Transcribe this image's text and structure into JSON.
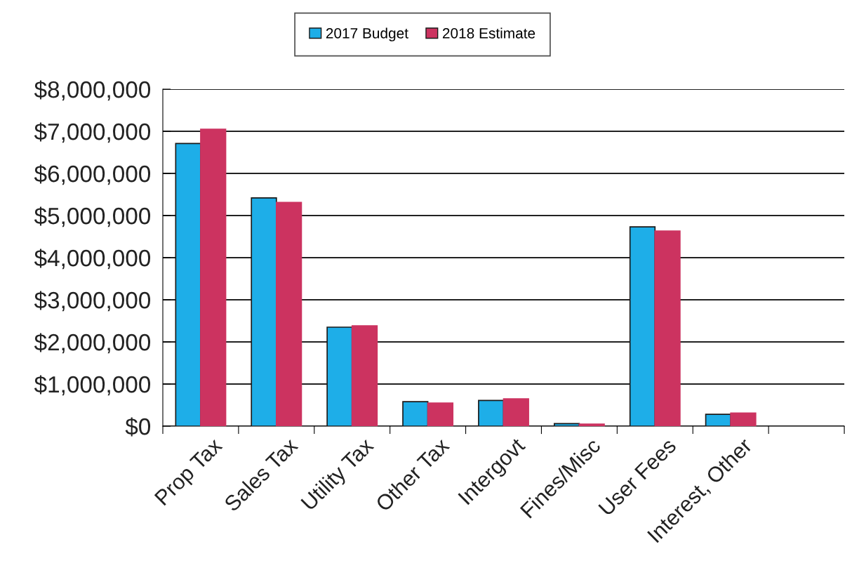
{
  "chart_data": {
    "type": "bar",
    "categories": [
      "Prop Tax",
      "Sales Tax",
      "Utility Tax",
      "Other Tax",
      "Intergovt",
      "Fines/Misc",
      "User Fees",
      "Interest, Other",
      null
    ],
    "series": [
      {
        "name": "2017 Budget",
        "color": "#1eaee8",
        "values": [
          6710000,
          5420000,
          2350000,
          580000,
          610000,
          60000,
          4730000,
          280000,
          null
        ]
      },
      {
        "name": "2018 Estimate",
        "color": "#cc3360",
        "values": [
          7050000,
          5310000,
          2380000,
          550000,
          650000,
          50000,
          4630000,
          310000,
          null
        ]
      }
    ],
    "ylim": [
      0,
      8000000
    ],
    "yticks": [
      {
        "value": 0,
        "label": "$0"
      },
      {
        "value": 1000000,
        "label": "$1,000,000"
      },
      {
        "value": 2000000,
        "label": "$2,000,000"
      },
      {
        "value": 3000000,
        "label": "$3,000,000"
      },
      {
        "value": 4000000,
        "label": "$4,000,000"
      },
      {
        "value": 5000000,
        "label": "$5,000,000"
      },
      {
        "value": 6000000,
        "label": "$6,000,000"
      },
      {
        "value": 7000000,
        "label": "$7,000,000"
      },
      {
        "value": 8000000,
        "label": "$8,000,000"
      }
    ],
    "grid": "y",
    "legend": "top"
  }
}
